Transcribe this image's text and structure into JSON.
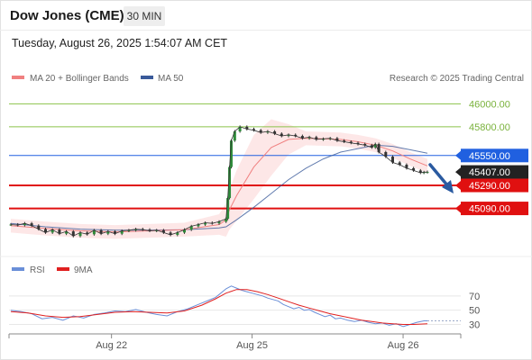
{
  "header": {
    "title": "Dow Jones (CME)",
    "timeframe": "30 MIN",
    "timestamp": "Tuesday, August 26, 2025 1:54:07 AM CET"
  },
  "legend": {
    "ma20_label": "MA 20 + Bollinger Bands",
    "ma50_label": "MA 50",
    "credit": "Research © 2025 Trading Central",
    "ma20_color": "#f08080",
    "ma50_color": "#3a5a9a"
  },
  "rsi_legend": {
    "rsi_label": "RSI",
    "ma_label": "9MA",
    "rsi_color": "#6a8fd8",
    "ma_color": "#e02020"
  },
  "chart_data": {
    "type": "line",
    "title": "",
    "x_ticks": [
      "Aug 22",
      "Aug 25",
      "Aug 26"
    ],
    "ylim": [
      44750,
      46120
    ],
    "levels": [
      {
        "value": 46000,
        "label": "46000.00",
        "kind": "resistance",
        "color": "#8bc34a"
      },
      {
        "value": 45800,
        "label": "45800.00",
        "kind": "resistance",
        "color": "#8bc34a"
      },
      {
        "value": 45550,
        "label": "45550.00",
        "kind": "pivot",
        "color": "#2060e0"
      },
      {
        "value": 45407,
        "label": "45407.00",
        "kind": "last",
        "color": "#222222"
      },
      {
        "value": 45290,
        "label": "45290.00",
        "kind": "support",
        "color": "#e01010"
      },
      {
        "value": 45090,
        "label": "45090.00",
        "kind": "support",
        "color": "#e01010"
      }
    ],
    "price": [
      [
        0,
        44950
      ],
      [
        4,
        44945
      ],
      [
        8,
        44960
      ],
      [
        12,
        44940
      ],
      [
        16,
        44910
      ],
      [
        20,
        44880
      ],
      [
        24,
        44905
      ],
      [
        28,
        44870
      ],
      [
        32,
        44890
      ],
      [
        36,
        44850
      ],
      [
        40,
        44880
      ],
      [
        44,
        44865
      ],
      [
        48,
        44900
      ],
      [
        52,
        44870
      ],
      [
        56,
        44890
      ],
      [
        60,
        44870
      ],
      [
        64,
        44895
      ],
      [
        68,
        44900
      ],
      [
        72,
        44910
      ],
      [
        76,
        44905
      ],
      [
        80,
        44895
      ],
      [
        84,
        44900
      ],
      [
        88,
        44880
      ],
      [
        92,
        44860
      ],
      [
        96,
        44880
      ],
      [
        100,
        44905
      ],
      [
        104,
        44935
      ],
      [
        108,
        44950
      ],
      [
        112,
        44965
      ],
      [
        116,
        44960
      ],
      [
        120,
        44975
      ],
      [
        124,
        45000
      ],
      [
        125,
        45180
      ],
      [
        126,
        45450
      ],
      [
        127,
        45680
      ],
      [
        129,
        45760
      ],
      [
        132,
        45800
      ],
      [
        136,
        45780
      ],
      [
        140,
        45770
      ],
      [
        144,
        45750
      ],
      [
        148,
        45760
      ],
      [
        152,
        45740
      ],
      [
        156,
        45720
      ],
      [
        160,
        45730
      ],
      [
        164,
        45720
      ],
      [
        168,
        45700
      ],
      [
        172,
        45710
      ],
      [
        176,
        45690
      ],
      [
        180,
        45695
      ],
      [
        184,
        45700
      ],
      [
        188,
        45680
      ],
      [
        192,
        45670
      ],
      [
        196,
        45660
      ],
      [
        200,
        45650
      ],
      [
        204,
        45640
      ],
      [
        208,
        45620
      ],
      [
        210,
        45650
      ],
      [
        212,
        45580
      ],
      [
        216,
        45540
      ],
      [
        220,
        45490
      ],
      [
        224,
        45470
      ],
      [
        228,
        45440
      ],
      [
        232,
        45420
      ],
      [
        236,
        45400
      ],
      [
        238,
        45405
      ],
      [
        240,
        45407
      ]
    ],
    "ma20": [
      [
        0,
        44940
      ],
      [
        20,
        44915
      ],
      [
        40,
        44895
      ],
      [
        60,
        44885
      ],
      [
        80,
        44895
      ],
      [
        100,
        44905
      ],
      [
        120,
        44950
      ],
      [
        124,
        44990
      ],
      [
        126,
        45080
      ],
      [
        130,
        45200
      ],
      [
        140,
        45450
      ],
      [
        150,
        45620
      ],
      [
        160,
        45690
      ],
      [
        170,
        45700
      ],
      [
        180,
        45695
      ],
      [
        190,
        45690
      ],
      [
        200,
        45670
      ],
      [
        210,
        45640
      ],
      [
        220,
        45590
      ],
      [
        230,
        45520
      ],
      [
        240,
        45460
      ]
    ],
    "ma50": [
      [
        0,
        44960
      ],
      [
        20,
        44930
      ],
      [
        40,
        44910
      ],
      [
        60,
        44900
      ],
      [
        80,
        44900
      ],
      [
        100,
        44905
      ],
      [
        120,
        44920
      ],
      [
        124,
        44930
      ],
      [
        130,
        44990
      ],
      [
        140,
        45100
      ],
      [
        150,
        45220
      ],
      [
        160,
        45340
      ],
      [
        170,
        45440
      ],
      [
        180,
        45520
      ],
      [
        190,
        45580
      ],
      [
        200,
        45610
      ],
      [
        210,
        45640
      ],
      [
        220,
        45630
      ],
      [
        230,
        45600
      ],
      [
        240,
        45570
      ]
    ],
    "rsi": {
      "ylim": [
        18,
        90
      ],
      "levels": [
        70,
        50,
        30
      ],
      "values": [
        [
          0,
          50
        ],
        [
          6,
          48
        ],
        [
          12,
          45
        ],
        [
          18,
          38
        ],
        [
          24,
          40
        ],
        [
          30,
          36
        ],
        [
          36,
          42
        ],
        [
          42,
          39
        ],
        [
          48,
          44
        ],
        [
          54,
          46
        ],
        [
          60,
          49
        ],
        [
          66,
          48
        ],
        [
          72,
          51
        ],
        [
          78,
          47
        ],
        [
          84,
          44
        ],
        [
          90,
          42
        ],
        [
          96,
          48
        ],
        [
          102,
          52
        ],
        [
          108,
          58
        ],
        [
          114,
          64
        ],
        [
          118,
          68
        ],
        [
          121,
          74
        ],
        [
          124,
          80
        ],
        [
          127,
          84
        ],
        [
          130,
          81
        ],
        [
          133,
          78
        ],
        [
          136,
          76
        ],
        [
          139,
          74
        ],
        [
          142,
          72
        ],
        [
          145,
          70
        ],
        [
          148,
          67
        ],
        [
          151,
          65
        ],
        [
          154,
          63
        ],
        [
          157,
          58
        ],
        [
          160,
          55
        ],
        [
          163,
          52
        ],
        [
          166,
          54
        ],
        [
          169,
          50
        ],
        [
          172,
          51
        ],
        [
          175,
          47
        ],
        [
          178,
          44
        ],
        [
          181,
          41
        ],
        [
          184,
          43
        ],
        [
          187,
          38
        ],
        [
          190,
          39
        ],
        [
          194,
          36
        ],
        [
          198,
          34
        ],
        [
          202,
          36
        ],
        [
          206,
          33
        ],
        [
          210,
          31
        ],
        [
          214,
          32
        ],
        [
          218,
          29
        ],
        [
          222,
          31
        ],
        [
          226,
          27
        ],
        [
          230,
          30
        ],
        [
          234,
          33
        ],
        [
          238,
          35
        ],
        [
          240,
          35
        ]
      ],
      "ma9": [
        [
          0,
          48
        ],
        [
          10,
          46
        ],
        [
          20,
          42
        ],
        [
          30,
          40
        ],
        [
          40,
          41
        ],
        [
          50,
          44
        ],
        [
          60,
          47
        ],
        [
          70,
          48
        ],
        [
          80,
          47
        ],
        [
          90,
          46
        ],
        [
          100,
          49
        ],
        [
          110,
          57
        ],
        [
          118,
          66
        ],
        [
          124,
          74
        ],
        [
          130,
          79
        ],
        [
          136,
          79
        ],
        [
          142,
          76
        ],
        [
          148,
          72
        ],
        [
          154,
          67
        ],
        [
          160,
          62
        ],
        [
          166,
          57
        ],
        [
          172,
          53
        ],
        [
          178,
          49
        ],
        [
          184,
          45
        ],
        [
          190,
          42
        ],
        [
          196,
          39
        ],
        [
          202,
          36
        ],
        [
          208,
          34
        ],
        [
          214,
          32
        ],
        [
          220,
          31
        ],
        [
          226,
          30
        ],
        [
          232,
          30
        ],
        [
          240,
          31
        ]
      ]
    }
  }
}
